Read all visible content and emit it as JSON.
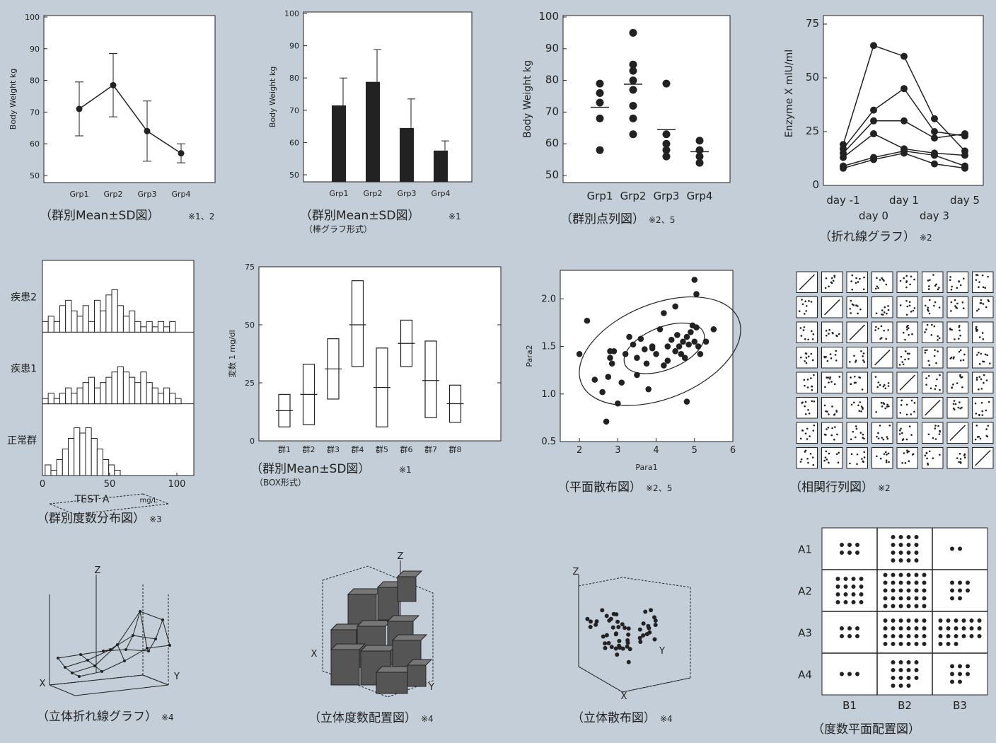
{
  "colors": {
    "background": "#c4ced8",
    "plot_bg": "#ffffff",
    "ink": "#222222"
  },
  "chart_data": [
    {
      "id": "c1",
      "type": "line",
      "categories": [
        "Grp1",
        "Grp2",
        "Grp3",
        "Grp4"
      ],
      "values": [
        71,
        78.5,
        64,
        57
      ],
      "error": [
        8.5,
        10,
        9.5,
        3
      ],
      "ylabel": "Body Weight  kg",
      "ylim": [
        50,
        100
      ],
      "yticks": [
        50,
        60,
        70,
        80,
        90,
        100
      ],
      "caption": "（群別Mean±SD図）",
      "note": "※1、2"
    },
    {
      "id": "c2",
      "type": "bar",
      "categories": [
        "Grp1",
        "Grp2",
        "Grp3",
        "Grp4"
      ],
      "values": [
        71.5,
        78.8,
        64.5,
        57.5
      ],
      "error": [
        8.5,
        10,
        9,
        3
      ],
      "ylabel": "Body Weight  kg",
      "ylim": [
        50,
        100
      ],
      "yticks": [
        50,
        60,
        70,
        80,
        90,
        100
      ],
      "caption": "（群別Mean±SD図）",
      "note": "※1",
      "subcaption": "（棒グラフ形式）"
    },
    {
      "id": "c3",
      "type": "scatter",
      "categories": [
        "Grp1",
        "Grp2",
        "Grp3",
        "Grp4"
      ],
      "points": [
        [
          76,
          79,
          73,
          68,
          58
        ],
        [
          95,
          85,
          83,
          80,
          77,
          72,
          68,
          63
        ],
        [
          79,
          63,
          60,
          58,
          56
        ],
        [
          61,
          58,
          56,
          54
        ]
      ],
      "means": [
        71.5,
        78.8,
        64.5,
        57.5
      ],
      "ylabel": "Body Weight  kg",
      "ylim": [
        50,
        100
      ],
      "yticks": [
        50,
        60,
        70,
        80,
        90,
        100
      ],
      "caption": "（群別点列図）",
      "note": "※2、5"
    },
    {
      "id": "c4",
      "type": "line",
      "x": [
        "day -1",
        "day 0",
        "day 1",
        "day 3",
        "day 5"
      ],
      "xlabels_top": [
        "day -1",
        "day 1",
        "day 5"
      ],
      "xlabels_bottom": [
        "day 0",
        "day 3"
      ],
      "series": [
        {
          "values": [
            19,
            65,
            60,
            31,
            16
          ]
        },
        {
          "values": [
            17,
            35,
            45,
            25,
            23
          ]
        },
        {
          "values": [
            15,
            30,
            30,
            22,
            24
          ]
        },
        {
          "values": [
            13,
            24,
            17,
            15,
            14
          ]
        },
        {
          "values": [
            9,
            13,
            16,
            14,
            9
          ]
        },
        {
          "values": [
            8,
            12,
            15,
            10,
            8
          ]
        }
      ],
      "ylabel": "Enzyme X  mIU/ml",
      "ylim": [
        0,
        75
      ],
      "yticks": [
        0,
        25,
        50,
        75
      ],
      "caption": "（折れ線グラフ）",
      "note": "※2"
    },
    {
      "id": "c5",
      "type": "histogram",
      "groups": [
        {
          "label": "疾患2",
          "counts": [
            2,
            3,
            2,
            5,
            6,
            4,
            3,
            5,
            2,
            6,
            4,
            7,
            8,
            5,
            3,
            4,
            2,
            1,
            2,
            1,
            2,
            1,
            2
          ]
        },
        {
          "label": "疾患1",
          "counts": [
            1,
            2,
            1,
            2,
            3,
            2,
            3,
            4,
            5,
            3,
            4,
            5,
            6,
            7,
            6,
            5,
            4,
            6,
            4,
            3,
            2,
            3,
            2,
            1
          ]
        },
        {
          "label": "正常群",
          "counts": [
            2,
            1,
            3,
            5,
            7,
            9,
            8,
            9,
            7,
            5,
            3,
            2,
            1
          ]
        }
      ],
      "xlabel": "TEST A",
      "xunit": "mg/L",
      "xlim": [
        0,
        100
      ],
      "xticks": [
        0,
        50,
        100
      ],
      "caption": "（群別度数分布図）",
      "note": "※3"
    },
    {
      "id": "c6",
      "type": "box",
      "categories": [
        "群1",
        "群2",
        "群3",
        "群4",
        "群5",
        "群6",
        "群7",
        "群8"
      ],
      "boxes": [
        [
          6,
          20,
          13
        ],
        [
          7,
          33,
          20
        ],
        [
          18,
          44,
          31
        ],
        [
          32,
          69,
          50
        ],
        [
          6,
          40,
          23
        ],
        [
          32,
          52,
          42
        ],
        [
          10,
          43,
          26
        ],
        [
          8,
          24,
          16
        ]
      ],
      "ylabel": "変数 1  mg/dl",
      "ylim": [
        0,
        75
      ],
      "yticks": [
        0,
        25,
        50,
        75
      ],
      "caption": "（群別Mean±SD図）",
      "note": "※1",
      "subcaption": "（BOX形式）"
    },
    {
      "id": "c7",
      "type": "scatter",
      "points": [
        [
          2.0,
          1.42
        ],
        [
          2.2,
          1.77
        ],
        [
          2.4,
          1.15
        ],
        [
          2.6,
          1.02
        ],
        [
          2.7,
          0.71
        ],
        [
          2.75,
          1.18
        ],
        [
          2.8,
          1.45
        ],
        [
          2.8,
          1.38
        ],
        [
          2.85,
          1.32
        ],
        [
          2.9,
          1.45
        ],
        [
          3.0,
          0.9
        ],
        [
          3.1,
          1.12
        ],
        [
          3.2,
          1.42
        ],
        [
          3.3,
          1.6
        ],
        [
          3.4,
          1.52
        ],
        [
          3.5,
          1.2
        ],
        [
          3.6,
          1.58
        ],
        [
          3.7,
          1.47
        ],
        [
          3.75,
          1.32
        ],
        [
          3.8,
          1.05
        ],
        [
          3.9,
          1.5
        ],
        [
          4.0,
          1.42
        ],
        [
          4.1,
          1.68
        ],
        [
          4.2,
          1.85
        ],
        [
          4.3,
          1.5
        ],
        [
          4.4,
          1.57
        ],
        [
          4.5,
          1.45
        ],
        [
          4.5,
          1.92
        ],
        [
          4.55,
          1.62
        ],
        [
          4.6,
          1.5
        ],
        [
          4.65,
          1.42
        ],
        [
          4.7,
          1.55
        ],
        [
          4.75,
          1.38
        ],
        [
          4.8,
          1.6
        ],
        [
          4.85,
          1.52
        ],
        [
          4.9,
          1.65
        ],
        [
          4.95,
          1.72
        ],
        [
          5.0,
          1.55
        ],
        [
          5.05,
          1.7
        ],
        [
          5.1,
          1.5
        ],
        [
          5.15,
          1.42
        ],
        [
          4.3,
          1.35
        ],
        [
          4.8,
          0.92
        ],
        [
          5.0,
          2.2
        ],
        [
          5.05,
          2.05
        ],
        [
          5.3,
          1.55
        ],
        [
          5.5,
          1.68
        ],
        [
          3.5,
          1.38
        ],
        [
          3.9,
          1.48
        ],
        [
          4.2,
          1.3
        ]
      ],
      "xlabel": "Para1",
      "ylabel": "Para2",
      "xlim": [
        1.5,
        6
      ],
      "ylim": [
        0.5,
        2.3
      ],
      "xticks": [
        2,
        3,
        4,
        5,
        6
      ],
      "yticks": [
        0.5,
        1.0,
        1.5,
        2.0
      ],
      "caption": "（平面散布図）",
      "note": "※2、5"
    },
    {
      "id": "c8",
      "type": "scatter-matrix",
      "size": 8,
      "caption": "（相関行列図）",
      "note": "※2"
    },
    {
      "id": "c9",
      "type": "line3d",
      "axes": [
        "X",
        "Y",
        "Z"
      ],
      "caption": "（立体折れ線グラフ）",
      "note": "※4"
    },
    {
      "id": "c10",
      "type": "bar3d",
      "axes": [
        "X",
        "Y",
        "Z"
      ],
      "caption": "（立体度数配置図）",
      "note": "※4"
    },
    {
      "id": "c11",
      "type": "scatter3d",
      "axes": [
        "X",
        "Y",
        "Z"
      ],
      "caption": "（立体散布図）",
      "note": "※4"
    },
    {
      "id": "c12",
      "type": "dot-grid",
      "rows": [
        "A1",
        "A2",
        "A3",
        "A4"
      ],
      "cols": [
        "B1",
        "B2",
        "B3"
      ],
      "counts": [
        [
          6,
          16,
          2
        ],
        [
          16,
          30,
          8
        ],
        [
          6,
          24,
          21
        ],
        [
          3,
          15,
          8
        ]
      ],
      "caption": "（度数平面配置図）"
    }
  ]
}
